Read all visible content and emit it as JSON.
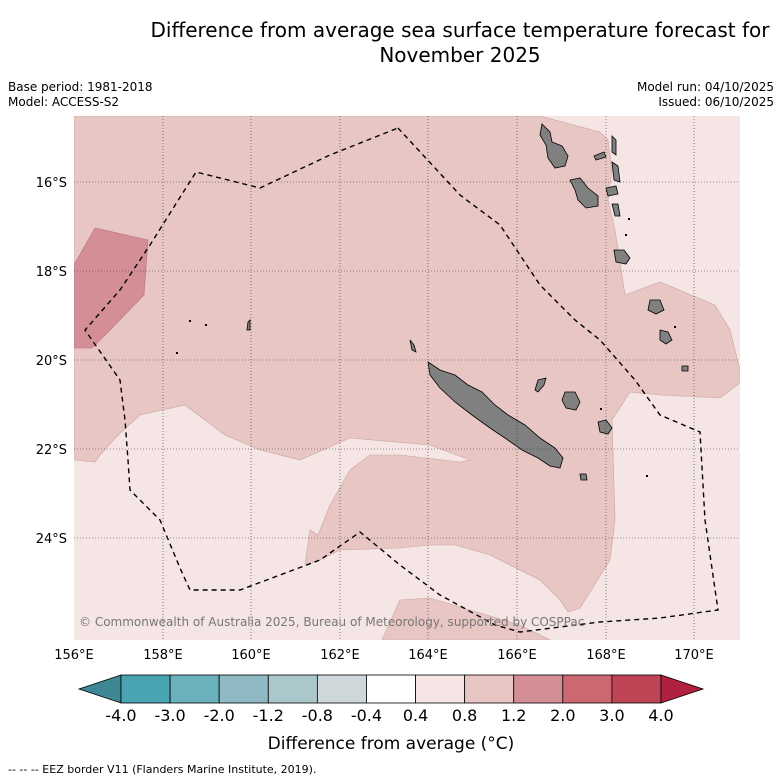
{
  "title_line1": "Difference from average sea surface temperature forecast for",
  "title_line2": "November 2025",
  "base_period": "Base period: 1981-2018",
  "model": "Model: ACCESS-S2",
  "model_run": "Model run: 04/10/2025",
  "issued": "Issued: 06/10/2025",
  "copyright": "© Commonwealth of Australia 2025, Bureau of Meteorology, supported by COSPPac",
  "lon_labels": [
    "156°E",
    "158°E",
    "160°E",
    "162°E",
    "164°E",
    "166°E",
    "168°E",
    "170°E"
  ],
  "lat_labels": [
    "16°S",
    "18°S",
    "20°S",
    "22°S",
    "24°S"
  ],
  "colorbar": {
    "title": "Difference from average (°C)",
    "labels": [
      "-4.0",
      "-3.0",
      "-2.0",
      "-1.2",
      "-0.8",
      "-0.4",
      "0.4",
      "0.8",
      "1.2",
      "2.0",
      "3.0",
      "4.0"
    ],
    "colors": [
      "#3d8894",
      "#4aa3b2",
      "#6ab0bd",
      "#8fbac4",
      "#aac8cc",
      "#ced8da",
      "#ffffff",
      "#f5e6e5",
      "#e8c6c3",
      "#d48f96",
      "#cc6872",
      "#bf4556",
      "#b0203f"
    ]
  },
  "legend_footnote": "-- -- -- EEZ border V11 (Flanders Marine Institute, 2019).",
  "fill_colors": {
    "light": "#f5e6e5",
    "medium": "#e8c6c3",
    "strong": "#d48f96",
    "land": "#808080"
  }
}
